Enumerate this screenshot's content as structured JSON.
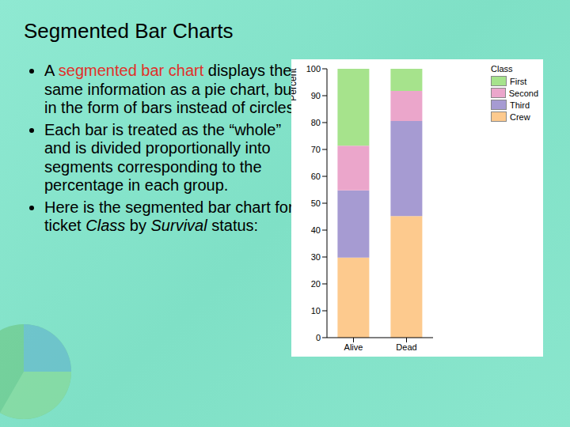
{
  "slide": {
    "title": "Segmented Bar Charts",
    "bullets": [
      [
        {
          "text": "A "
        },
        {
          "text": "segmented bar chart",
          "color": "#e0302a"
        },
        {
          "text": " displays the same information as a pie chart, but in the form of bars instead of circles."
        }
      ],
      [
        {
          "text": "Each bar is treated as the “whole” and is divided proportionally into segments corresponding to the percentage in each group."
        }
      ],
      [
        {
          "text": "Here is the segmented bar chart for ticket "
        },
        {
          "text": "Class",
          "italic": true
        },
        {
          "text": " by "
        },
        {
          "text": "Survival",
          "italic": true
        },
        {
          "text": " status:"
        }
      ]
    ]
  },
  "chart_data": {
    "type": "bar",
    "stacked": true,
    "y_label": "Percent",
    "legend_title": "Class",
    "legend": "right",
    "categories": [
      "Alive",
      "Dead"
    ],
    "series": [
      {
        "name": "First",
        "color": "#a6e38c",
        "values": [
          28.6,
          8.2
        ]
      },
      {
        "name": "Second",
        "color": "#eba6cb",
        "values": [
          16.6,
          11.2
        ]
      },
      {
        "name": "Third",
        "color": "#a69bd2",
        "values": [
          25.0,
          35.4
        ]
      },
      {
        "name": "Crew",
        "color": "#fdca8e",
        "values": [
          29.8,
          45.2
        ]
      }
    ],
    "ylim": [
      0,
      100
    ],
    "yticks": [
      0,
      10,
      20,
      30,
      40,
      50,
      60,
      70,
      80,
      90,
      100
    ],
    "grid": false
  }
}
